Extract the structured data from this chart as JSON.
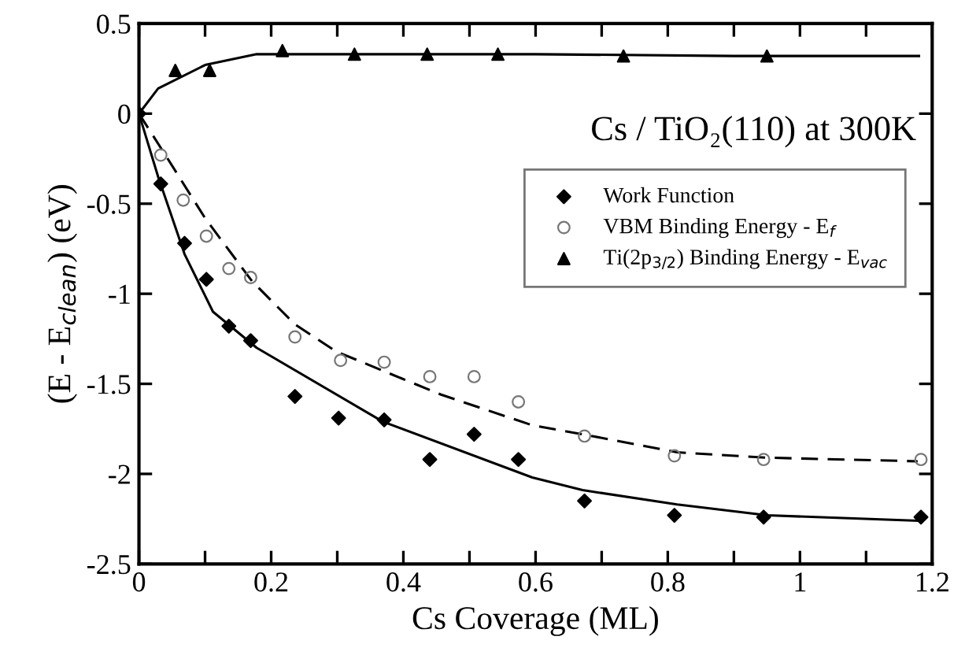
{
  "chart_data": {
    "type": "scatter",
    "xlabel": "Cs Coverage (ML)",
    "ylabel": "(E - E$_{clean}$) (eV)",
    "annotations": [
      "Cs / TiO₂(110) at 300K"
    ],
    "xlim": [
      0,
      1.2
    ],
    "ylim": [
      -2.5,
      0.5
    ],
    "xticks": [
      0,
      {
        "value": 0.1,
        "label": null
      },
      0.2,
      {
        "value": 0.3,
        "label": null
      },
      0.4,
      {
        "value": 0.5,
        "label": null
      },
      0.6,
      {
        "value": 0.7,
        "label": null
      },
      0.8,
      {
        "value": 0.9,
        "label": null
      },
      1,
      {
        "value": 1.1,
        "label": null
      },
      1.2
    ],
    "yticks": [
      -2.5,
      -2,
      -1.5,
      -1,
      -0.5,
      0,
      0.5
    ],
    "grid": false,
    "legend": "top right",
    "series": [
      {
        "name": "Work Function",
        "marker": "diamond",
        "color": "#000000",
        "x": [
          0,
          0.033,
          0.069,
          0.102,
          0.136,
          0.169,
          0.236,
          0.302,
          0.371,
          0.44,
          0.507,
          0.574,
          0.674,
          0.81,
          0.945,
          1.183
        ],
        "values": [
          0,
          -0.39,
          -0.72,
          -0.92,
          -1.18,
          -1.26,
          -1.57,
          -1.69,
          -1.7,
          -1.92,
          -1.78,
          -1.92,
          -2.15,
          -2.23,
          -2.24,
          -2.24
        ]
      },
      {
        "name": "VBM Binding Energy - E$_{f}$",
        "marker": "circle",
        "color": "#777777",
        "x": [
          0.033,
          0.067,
          0.102,
          0.136,
          0.169,
          0.236,
          0.305,
          0.371,
          0.44,
          0.507,
          0.574,
          0.674,
          0.81,
          0.945,
          1.183
        ],
        "values": [
          -0.23,
          -0.48,
          -0.68,
          -0.86,
          -0.91,
          -1.24,
          -1.37,
          -1.38,
          -1.46,
          -1.46,
          -1.6,
          -1.79,
          -1.9,
          -1.92,
          -1.92
        ]
      },
      {
        "name": "Ti(2p$_{3/2}$) Binding Energy - E$_{vac}$",
        "marker": "triangle",
        "color": "#000000",
        "x": [
          0.055,
          0.107,
          0.217,
          0.326,
          0.436,
          0.543,
          0.733,
          0.95
        ],
        "values": [
          0.24,
          0.24,
          0.35,
          0.33,
          0.33,
          0.33,
          0.32,
          0.32
        ]
      },
      {
        "type": "line",
        "line_style": "solid",
        "color": "#000000",
        "x": [
          0,
          0.029,
          0.069,
          0.112,
          0.178,
          0.369,
          0.595,
          0.671,
          0.814,
          0.95,
          1.178
        ],
        "values": [
          0,
          -0.35,
          -0.78,
          -1.1,
          -1.3,
          -1.71,
          -2.02,
          -2.09,
          -2.17,
          -2.23,
          -2.26
        ]
      },
      {
        "type": "line",
        "line_style": "dashed",
        "color": "#000000",
        "x": [
          0,
          0.04,
          0.1,
          0.171,
          0.236,
          0.298,
          0.457,
          0.595,
          0.671,
          0.814,
          0.95,
          1.178
        ],
        "values": [
          0,
          -0.23,
          -0.58,
          -0.93,
          -1.17,
          -1.32,
          -1.56,
          -1.73,
          -1.78,
          -1.88,
          -1.91,
          -1.93
        ]
      },
      {
        "type": "line",
        "line_style": "solid",
        "color": "#000000",
        "x": [
          0,
          0.029,
          0.1,
          0.178,
          0.3,
          0.6,
          0.9,
          1.18
        ],
        "values": [
          0,
          0.14,
          0.27,
          0.33,
          0.33,
          0.33,
          0.32,
          0.32
        ]
      }
    ]
  }
}
